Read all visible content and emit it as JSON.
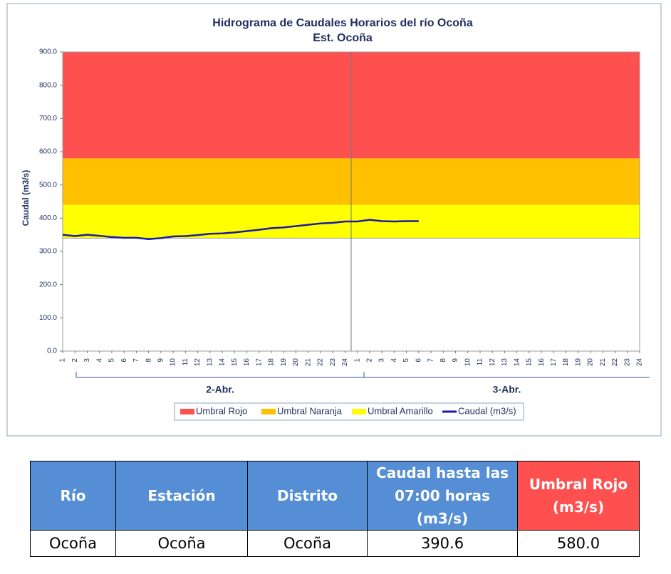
{
  "chart_data": {
    "type": "line",
    "title": "Hidrograma de Caudales Horarios del río Ocoña",
    "subtitle": "Est. Ocoña",
    "y_label": "Caudal (m3/s)",
    "categories": [
      "1",
      "2",
      "3",
      "4",
      "5",
      "6",
      "7",
      "8",
      "9",
      "10",
      "11",
      "12",
      "13",
      "14",
      "15",
      "16",
      "17",
      "18",
      "19",
      "20",
      "21",
      "22",
      "23",
      "24",
      "1",
      "2",
      "3",
      "4",
      "5",
      "6",
      "7",
      "8",
      "9",
      "10",
      "11",
      "12",
      "13",
      "14",
      "15",
      "16",
      "17",
      "18",
      "19",
      "20",
      "21",
      "22",
      "23",
      "24"
    ],
    "groups": [
      "2-Abr.",
      "3-Abr."
    ],
    "series": [
      {
        "name": "Umbral Rojo",
        "color": "#ff5050",
        "value": 580
      },
      {
        "name": "Umbral Naranja",
        "color": "#ffc000",
        "value": 440
      },
      {
        "name": "Umbral Amarillo",
        "color": "#ffff00",
        "value": 340
      },
      {
        "name": "Caudal (m3/s)",
        "color": "#1a1aa6",
        "values": [
          350,
          346,
          350,
          347,
          343,
          341,
          341,
          337,
          340,
          345,
          346,
          349,
          353,
          354,
          357,
          361,
          365,
          370,
          372,
          376,
          380,
          384,
          386,
          390,
          390,
          395,
          391,
          390,
          391,
          391,
          null,
          null,
          null,
          null,
          null,
          null,
          null,
          null,
          null,
          null,
          null,
          null,
          null,
          null,
          null,
          null,
          null,
          null
        ]
      }
    ],
    "ylim": [
      0,
      900
    ],
    "yticks": [
      {
        "value": 0,
        "label": "0.0"
      },
      {
        "value": 100,
        "label": "100.0"
      },
      {
        "value": 200,
        "label": "200.0"
      },
      {
        "value": 300,
        "label": "300.0"
      },
      {
        "value": 400,
        "label": "400.0"
      },
      {
        "value": 500,
        "label": "500.0"
      },
      {
        "value": 600,
        "label": "600.0"
      },
      {
        "value": 700,
        "label": "700.0"
      },
      {
        "value": 800,
        "label": "800.0"
      },
      {
        "value": 900,
        "label": "900.0"
      }
    ],
    "grid": false
  },
  "table": {
    "header": [
      "Río",
      "Estación",
      "Distrito",
      "Caudal hasta las 07:00 horas (m3/s)",
      "Umbral  Rojo (m3/s)"
    ],
    "rows": [
      [
        "Ocoña",
        "Ocoña",
        "Ocoña",
        "390.6",
        "580.0"
      ]
    ]
  }
}
